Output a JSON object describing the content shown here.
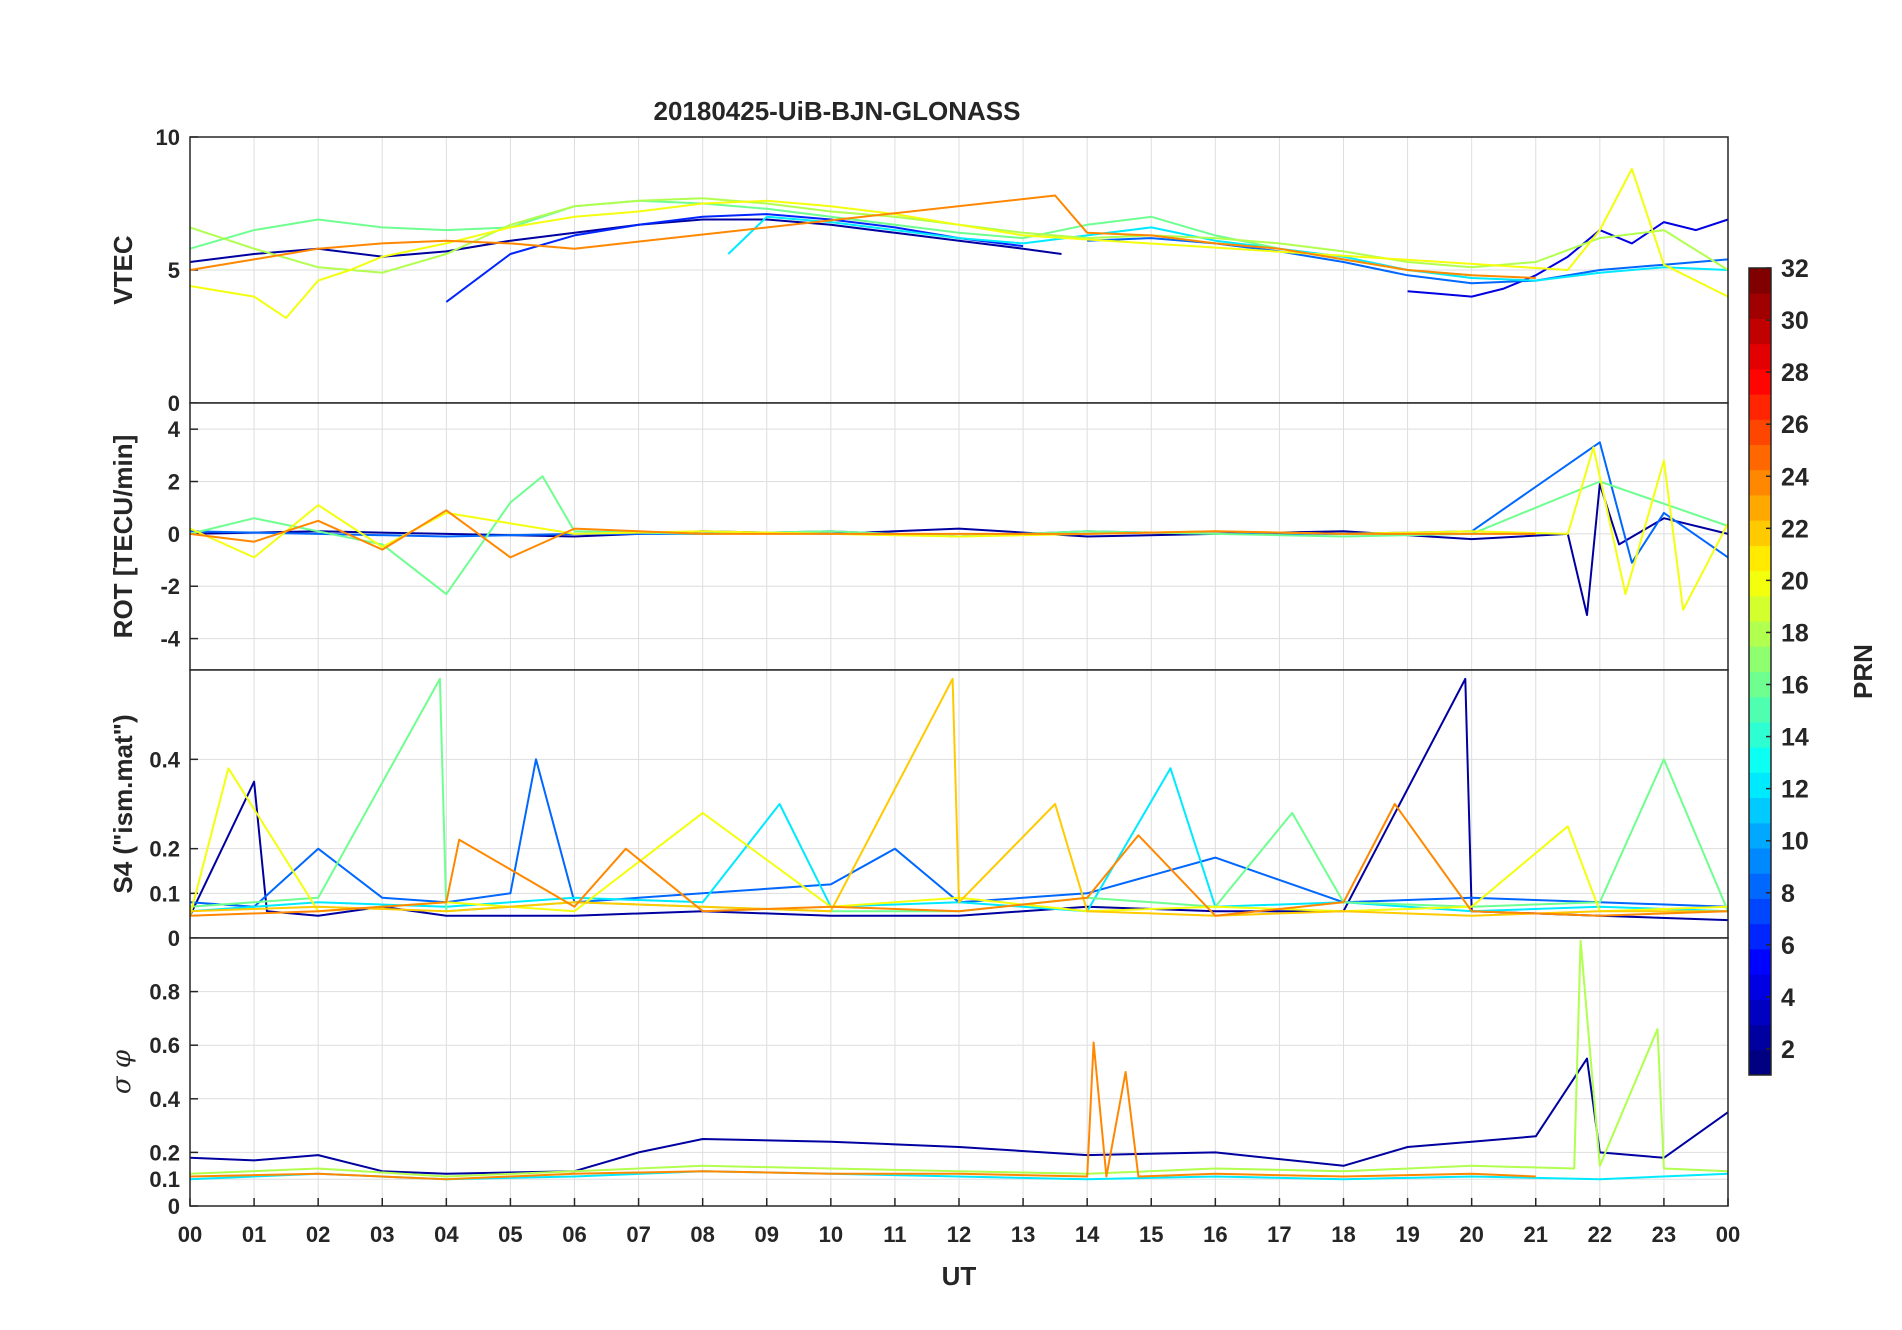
{
  "chart_data": {
    "type": "line",
    "title": "20180425-UiB-BJN-GLONASS",
    "xlabel": "UT",
    "x_ticks": [
      "00",
      "01",
      "02",
      "03",
      "04",
      "05",
      "06",
      "07",
      "08",
      "09",
      "10",
      "11",
      "12",
      "13",
      "14",
      "15",
      "16",
      "17",
      "18",
      "19",
      "20",
      "21",
      "22",
      "23",
      "00"
    ],
    "xlim": [
      0,
      24
    ],
    "grid": true,
    "colorbar": {
      "label": "PRN",
      "colormap": "jet",
      "range": [
        1,
        32
      ],
      "ticks": [
        "2",
        "4",
        "6",
        "8",
        "10",
        "12",
        "14",
        "16",
        "18",
        "20",
        "22",
        "24",
        "26",
        "28",
        "30",
        "32"
      ],
      "placement": "right"
    },
    "panels": [
      {
        "name": "vtec",
        "ylabel": "VTEC",
        "ylim": [
          0,
          10
        ],
        "y_ticks": [
          "0",
          "5",
          "10"
        ],
        "series": [
          {
            "prn": 2,
            "x": [
              0,
              1,
              2,
              3,
              4,
              5,
              6,
              7,
              8,
              9,
              10,
              11,
              12,
              13,
              13.6
            ],
            "y": [
              5.3,
              5.6,
              5.8,
              5.5,
              5.7,
              6.1,
              6.4,
              6.7,
              6.9,
              6.9,
              6.7,
              6.4,
              6.1,
              5.8,
              5.6
            ]
          },
          {
            "prn": 4,
            "x": [
              19,
              19.5,
              20,
              20.5,
              21,
              21.5,
              22,
              22.5,
              23,
              23.5,
              24
            ],
            "y": [
              4.2,
              4.1,
              4.0,
              4.3,
              4.8,
              5.5,
              6.5,
              6.0,
              6.8,
              6.5,
              6.9
            ]
          },
          {
            "prn": 6,
            "x": [
              4,
              5,
              6,
              7,
              8,
              9,
              10,
              11,
              12,
              13
            ],
            "y": [
              3.8,
              5.6,
              6.3,
              6.7,
              7.0,
              7.1,
              6.9,
              6.6,
              6.2,
              5.9
            ]
          },
          {
            "prn": 8,
            "x": [
              14,
              15,
              16,
              17,
              18,
              19,
              20,
              21,
              22,
              23,
              24
            ],
            "y": [
              6.1,
              6.2,
              6.0,
              5.7,
              5.3,
              4.8,
              4.5,
              4.6,
              5.0,
              5.2,
              5.4
            ]
          },
          {
            "prn": 12,
            "x": [
              8.4,
              9,
              10,
              11,
              12,
              13,
              14,
              15,
              16,
              17,
              18,
              19,
              20,
              21,
              22,
              23,
              24
            ],
            "y": [
              5.6,
              7.0,
              6.8,
              6.5,
              6.2,
              6.0,
              6.3,
              6.6,
              6.1,
              5.8,
              5.5,
              5.0,
              4.7,
              4.6,
              4.9,
              5.1,
              5.0
            ]
          },
          {
            "prn": 16,
            "x": [
              0,
              1,
              2,
              3,
              4,
              5,
              6,
              7,
              8,
              9,
              10,
              11,
              12,
              13,
              14,
              15,
              16,
              17,
              18,
              19,
              20
            ],
            "y": [
              5.8,
              6.5,
              6.9,
              6.6,
              6.5,
              6.6,
              7.4,
              7.6,
              7.5,
              7.3,
              7.0,
              6.7,
              6.4,
              6.2,
              6.7,
              7.0,
              6.3,
              5.8,
              5.4,
              5.0,
              4.8
            ]
          },
          {
            "prn": 18,
            "x": [
              0,
              1,
              2,
              3,
              4,
              5,
              6,
              7,
              8,
              9,
              10,
              11,
              12,
              13,
              14,
              15,
              16,
              17,
              18,
              19,
              20,
              21,
              22,
              23,
              24
            ],
            "y": [
              6.6,
              5.8,
              5.1,
              4.9,
              5.6,
              6.7,
              7.4,
              7.6,
              7.7,
              7.5,
              7.2,
              7.0,
              6.7,
              6.4,
              6.2,
              6.3,
              6.2,
              6.0,
              5.7,
              5.3,
              5.1,
              5.3,
              6.2,
              6.5,
              5.0
            ]
          },
          {
            "prn": 20,
            "x": [
              0,
              1,
              1.5,
              2,
              2.5,
              3,
              4,
              5,
              6,
              7,
              8,
              9,
              10,
              11,
              12,
              13,
              21.5,
              22,
              22.5,
              23,
              24
            ],
            "y": [
              4.4,
              4.0,
              3.2,
              4.6,
              5.0,
              5.5,
              6.0,
              6.6,
              7.0,
              7.2,
              7.5,
              7.6,
              7.4,
              7.1,
              6.7,
              6.3,
              5.0,
              6.5,
              8.8,
              5.2,
              4.0
            ]
          },
          {
            "prn": 24,
            "x": [
              0,
              1,
              2,
              3,
              4,
              5,
              6,
              13.5,
              14,
              15,
              16,
              17,
              18,
              19,
              20,
              21
            ],
            "y": [
              5.0,
              5.4,
              5.8,
              6.0,
              6.1,
              6.0,
              5.8,
              7.8,
              6.4,
              6.3,
              6.0,
              5.8,
              5.4,
              5.0,
              4.8,
              4.7
            ]
          }
        ]
      },
      {
        "name": "rot",
        "ylabel": "ROT [TECU/min]",
        "ylim": [
          -5.2,
          5
        ],
        "y_ticks": [
          "-4",
          "-2",
          "0",
          "2",
          "4"
        ],
        "series": [
          {
            "prn": 2,
            "x": [
              0,
              2,
              4,
              6,
              8,
              10,
              12,
              14,
              16,
              18,
              20,
              21.5,
              21.8,
              22,
              22.3,
              23,
              24
            ],
            "y": [
              0,
              0.1,
              0,
              -0.1,
              0.1,
              0,
              0.2,
              -0.1,
              0,
              0.1,
              -0.2,
              0,
              -3.1,
              1.9,
              -0.4,
              0.6,
              0
            ]
          },
          {
            "prn": 8,
            "x": [
              0,
              2,
              4,
              6,
              8,
              10,
              12,
              14,
              16,
              18,
              20,
              22,
              22.5,
              23,
              24
            ],
            "y": [
              0.1,
              0,
              -0.1,
              0,
              0,
              0.1,
              -0.1,
              0.1,
              0,
              0,
              0.1,
              3.5,
              -1.1,
              0.8,
              -0.9
            ]
          },
          {
            "prn": 16,
            "x": [
              0,
              1,
              3,
              4,
              5,
              5.5,
              6,
              8,
              10,
              12,
              14,
              16,
              18,
              20,
              22,
              24
            ],
            "y": [
              0,
              0.6,
              -0.4,
              -2.3,
              1.2,
              2.2,
              0.1,
              0,
              0.1,
              -0.1,
              0.1,
              0,
              -0.1,
              0,
              2.0,
              0.3
            ]
          },
          {
            "prn": 20,
            "x": [
              0,
              1,
              2,
              3,
              4,
              6,
              8,
              10,
              12,
              14,
              16,
              18,
              20,
              21.5,
              21.9,
              22.4,
              23,
              23.3,
              24
            ],
            "y": [
              0.2,
              -0.9,
              1.1,
              -0.5,
              0.8,
              0,
              0.1,
              0,
              -0.1,
              0,
              0.1,
              0,
              0.1,
              0,
              3.3,
              -2.3,
              2.8,
              -2.9,
              0.4
            ]
          },
          {
            "prn": 24,
            "x": [
              0,
              1,
              2,
              3,
              4,
              5,
              6,
              8,
              10,
              12,
              14,
              16,
              18,
              20,
              21
            ],
            "y": [
              0,
              -0.3,
              0.5,
              -0.6,
              0.9,
              -0.9,
              0.2,
              0,
              0,
              0,
              0,
              0.1,
              0,
              0,
              0
            ]
          }
        ]
      },
      {
        "name": "s4",
        "ylabel": "S4 (\"ism.mat\")",
        "ylim": [
          0,
          0.6
        ],
        "y_ticks": [
          "0",
          "0.1",
          "0.2",
          "0.4"
        ],
        "series": [
          {
            "prn": 2,
            "x": [
              0,
              1,
              1.2,
              2,
              3,
              4,
              6,
              8,
              10,
              12,
              14,
              16,
              18,
              19.9,
              20,
              22,
              24
            ],
            "y": [
              0.05,
              0.35,
              0.06,
              0.05,
              0.07,
              0.05,
              0.05,
              0.06,
              0.05,
              0.05,
              0.07,
              0.06,
              0.06,
              0.58,
              0.06,
              0.05,
              0.04
            ]
          },
          {
            "prn": 8,
            "x": [
              0,
              1,
              2,
              3,
              4,
              5,
              5.4,
              6,
              8,
              10,
              11,
              12,
              14,
              16,
              18,
              20,
              22,
              24
            ],
            "y": [
              0.08,
              0.07,
              0.2,
              0.09,
              0.08,
              0.1,
              0.4,
              0.08,
              0.1,
              0.12,
              0.2,
              0.08,
              0.1,
              0.18,
              0.08,
              0.09,
              0.08,
              0.07
            ]
          },
          {
            "prn": 12,
            "x": [
              0,
              2,
              4,
              6,
              8,
              9.2,
              10,
              12,
              14,
              15.3,
              16,
              18,
              20,
              22,
              24
            ],
            "y": [
              0.06,
              0.08,
              0.07,
              0.09,
              0.08,
              0.3,
              0.07,
              0.08,
              0.06,
              0.38,
              0.07,
              0.08,
              0.06,
              0.07,
              0.06
            ]
          },
          {
            "prn": 16,
            "x": [
              0,
              2,
              3.9,
              4,
              6,
              8,
              10,
              12,
              14,
              16,
              17.2,
              18,
              20,
              22,
              23,
              24
            ],
            "y": [
              0.07,
              0.09,
              0.58,
              0.06,
              0.08,
              0.07,
              0.06,
              0.06,
              0.09,
              0.07,
              0.28,
              0.08,
              0.07,
              0.08,
              0.4,
              0.06
            ]
          },
          {
            "prn": 20,
            "x": [
              0,
              0.6,
              2,
              4,
              6,
              8,
              10,
              12,
              14,
              16,
              18,
              20,
              21.5,
              22,
              24
            ],
            "y": [
              0.05,
              0.38,
              0.06,
              0.08,
              0.06,
              0.28,
              0.07,
              0.09,
              0.06,
              0.07,
              0.06,
              0.07,
              0.25,
              0.06,
              0.07
            ]
          },
          {
            "prn": 22,
            "x": [
              0,
              2,
              4,
              6,
              8,
              10,
              11.9,
              12,
              13.5,
              14,
              16,
              18,
              20,
              22,
              24
            ],
            "y": [
              0.06,
              0.07,
              0.06,
              0.08,
              0.07,
              0.06,
              0.58,
              0.08,
              0.3,
              0.06,
              0.05,
              0.06,
              0.05,
              0.06,
              0.06
            ]
          },
          {
            "prn": 24,
            "x": [
              0,
              2,
              4,
              4.2,
              6,
              6.8,
              8,
              10,
              12,
              14,
              14.8,
              16,
              18,
              18.8,
              20,
              22,
              24
            ],
            "y": [
              0.05,
              0.06,
              0.08,
              0.22,
              0.07,
              0.2,
              0.06,
              0.07,
              0.06,
              0.09,
              0.23,
              0.05,
              0.08,
              0.3,
              0.06,
              0.05,
              0.06
            ]
          }
        ]
      },
      {
        "name": "sigma_phi",
        "ylabel": "σ φ",
        "ylim": [
          0,
          1
        ],
        "y_ticks": [
          "0",
          "0.1",
          "0.2",
          "0.4",
          "0.6",
          "0.8"
        ],
        "series": [
          {
            "prn": 2,
            "x": [
              0,
              1,
              2,
              3,
              4,
              6,
              7,
              8,
              10,
              12,
              14,
              16,
              18,
              19,
              20,
              21,
              21.8,
              22,
              23,
              24
            ],
            "y": [
              0.18,
              0.17,
              0.19,
              0.13,
              0.12,
              0.13,
              0.2,
              0.25,
              0.24,
              0.22,
              0.19,
              0.2,
              0.15,
              0.22,
              0.24,
              0.26,
              0.55,
              0.2,
              0.18,
              0.35
            ]
          },
          {
            "prn": 12,
            "x": [
              0,
              2,
              4,
              6,
              8,
              10,
              12,
              14,
              16,
              18,
              20,
              22,
              24
            ],
            "y": [
              0.1,
              0.12,
              0.1,
              0.11,
              0.13,
              0.12,
              0.11,
              0.1,
              0.11,
              0.1,
              0.11,
              0.1,
              0.12
            ]
          },
          {
            "prn": 18,
            "x": [
              0,
              2,
              4,
              6,
              8,
              10,
              12,
              14,
              16,
              18,
              20,
              21.6,
              21.7,
              22,
              22.9,
              23,
              24
            ],
            "y": [
              0.12,
              0.14,
              0.11,
              0.13,
              0.15,
              0.14,
              0.13,
              0.12,
              0.14,
              0.13,
              0.15,
              0.14,
              0.99,
              0.15,
              0.66,
              0.14,
              0.13
            ]
          },
          {
            "prn": 24,
            "x": [
              0,
              2,
              4,
              6,
              8,
              10,
              12,
              14,
              14.1,
              14.3,
              14.6,
              14.8,
              16,
              18,
              20,
              21
            ],
            "y": [
              0.11,
              0.12,
              0.1,
              0.12,
              0.13,
              0.12,
              0.12,
              0.11,
              0.61,
              0.11,
              0.5,
              0.11,
              0.12,
              0.11,
              0.12,
              0.11
            ]
          }
        ]
      }
    ]
  }
}
